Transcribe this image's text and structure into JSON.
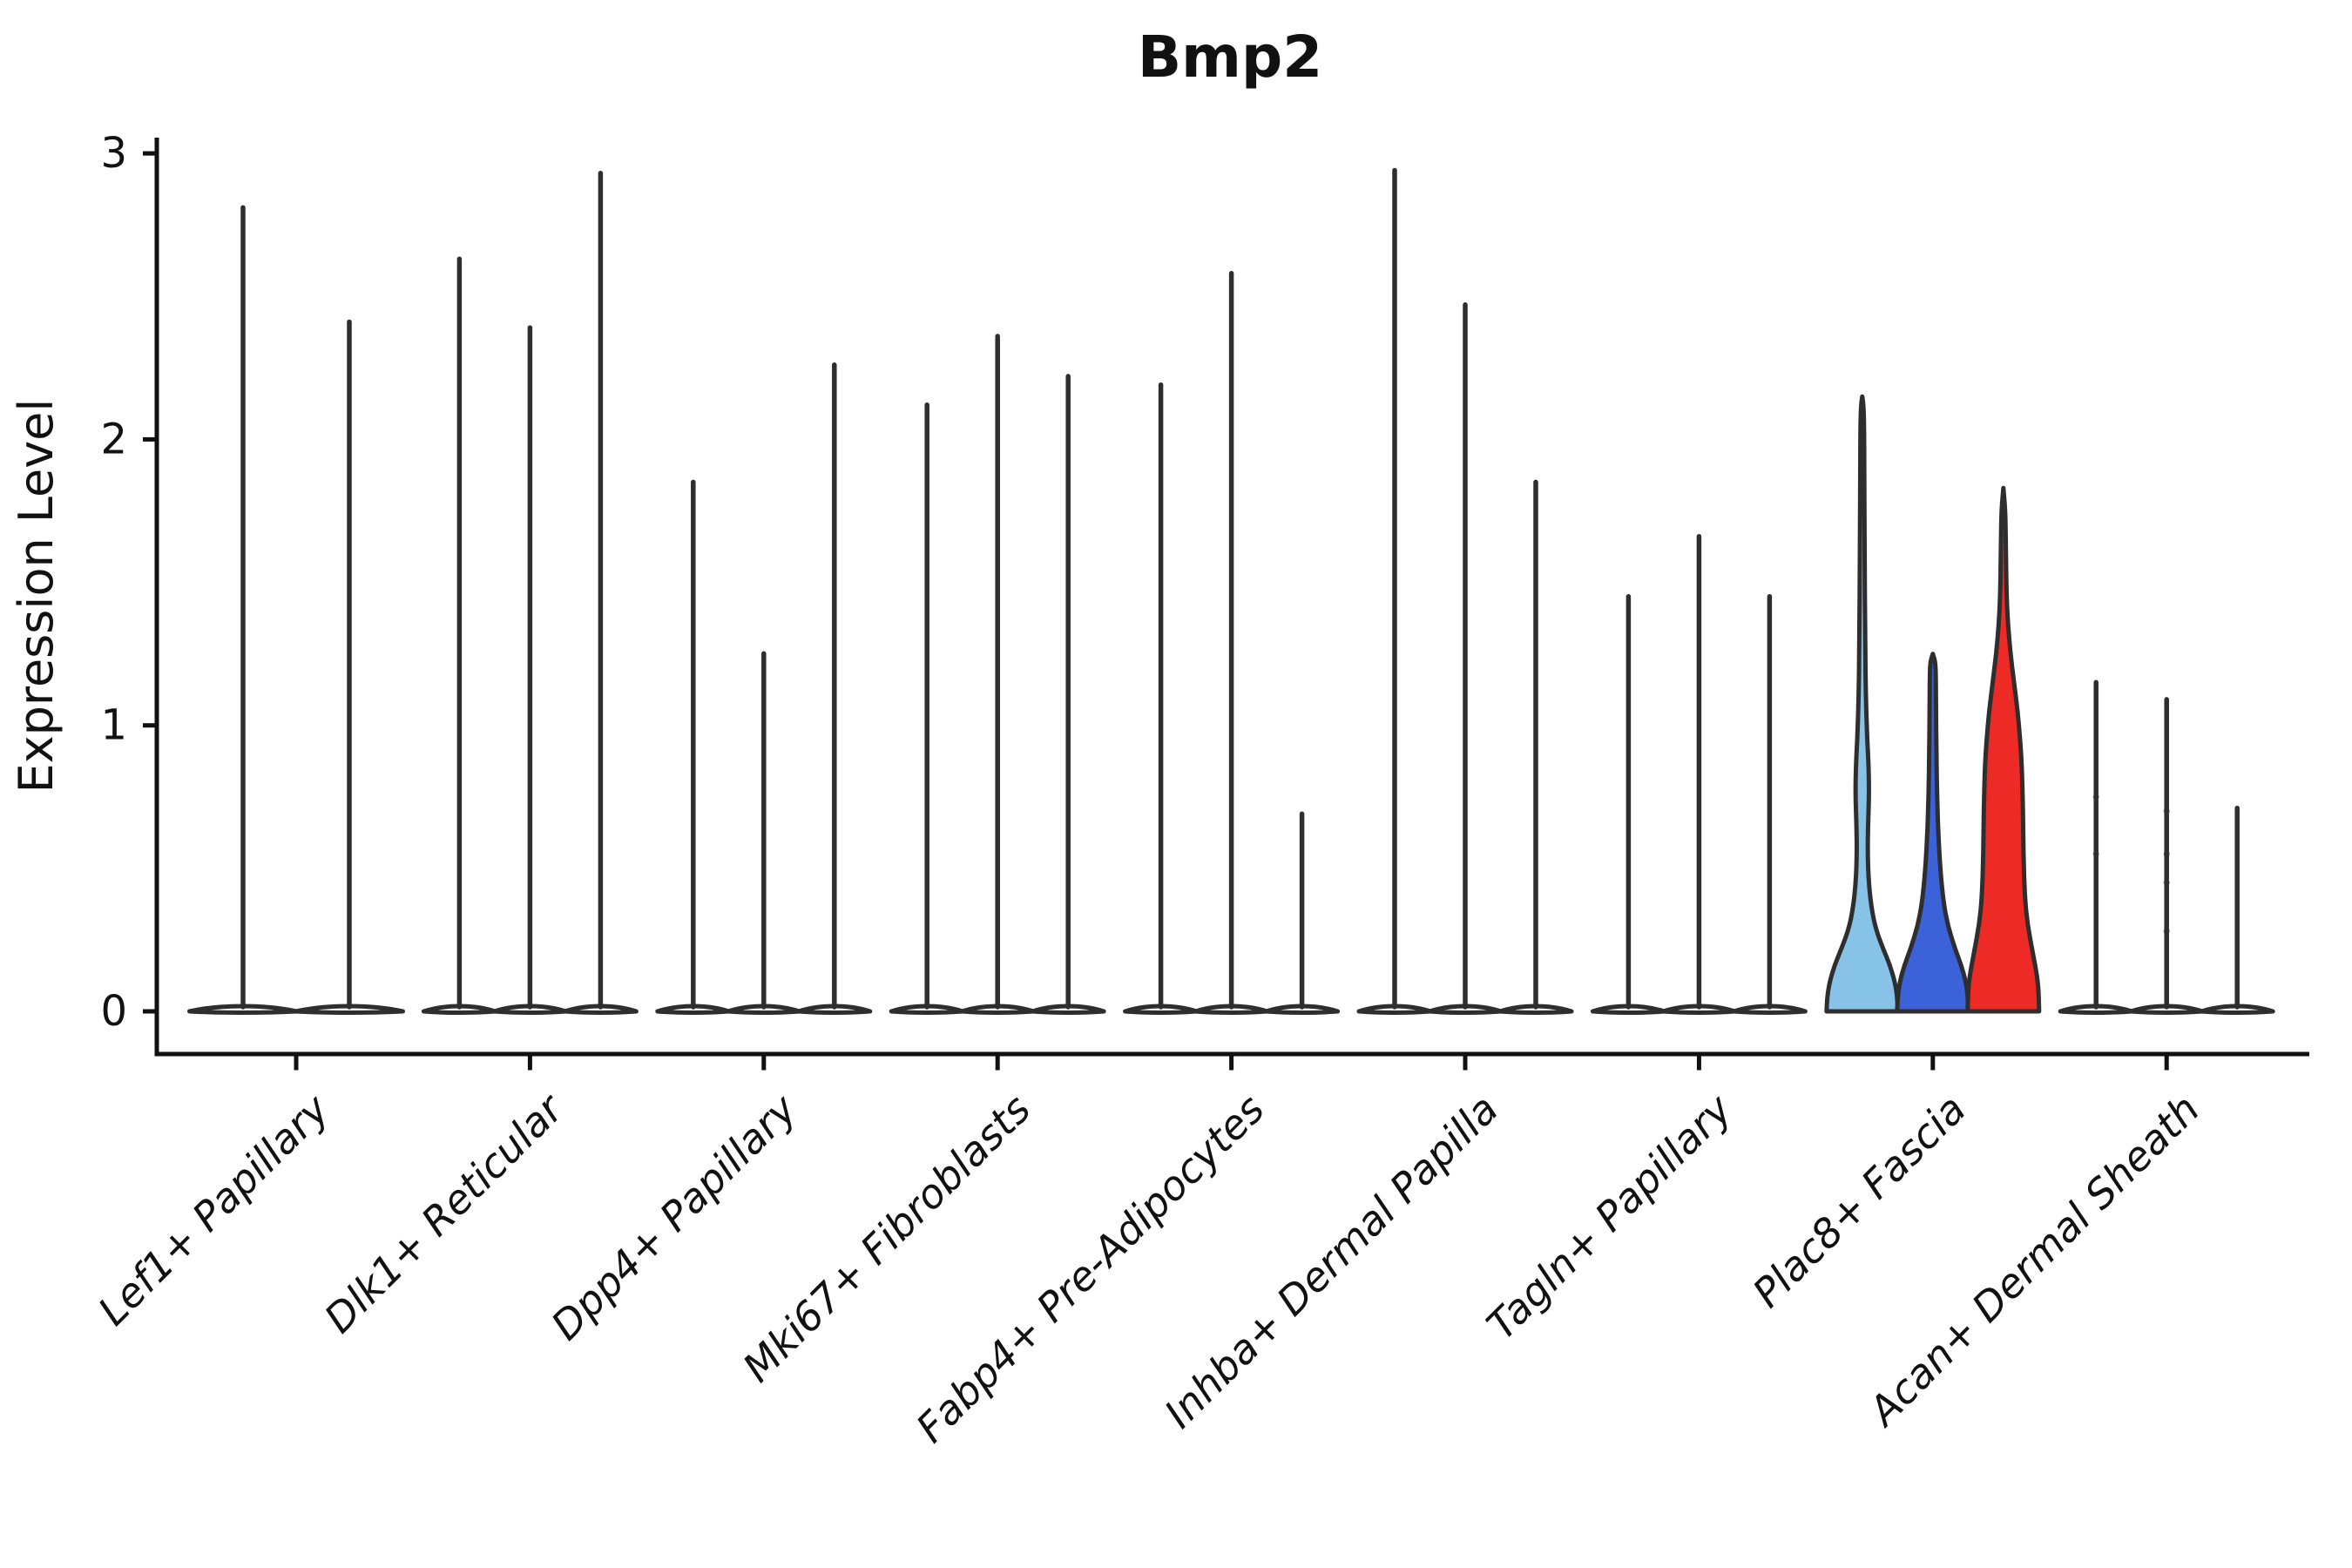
{
  "chart_data": {
    "type": "violin",
    "title": "Bmp2",
    "xlabel": "",
    "ylabel": "Expression Level",
    "yticks": [
      0,
      1,
      2,
      3
    ],
    "ylim": [
      0,
      3
    ],
    "grid": false,
    "legend": "none",
    "categories": [
      "Lef1+ Papillary",
      "Dlk1+ Reticular",
      "Dpp4+ Papillary",
      "Mki67+ Fibroblasts",
      "Fabp4+ Pre-Adipocytes",
      "Inhba+ Dermal Papilla",
      "Tagln+ Papillary",
      "Plac8+ Fascia",
      "Acan+ Dermal Sheath"
    ],
    "groups": [
      {
        "label": "Lef1+ Papillary",
        "violins": [
          {
            "max": 2.82
          },
          {
            "max": 2.42
          }
        ]
      },
      {
        "label": "Dlk1+ Reticular",
        "violins": [
          {
            "max": 2.64
          },
          {
            "max": 2.4
          },
          {
            "max": 2.94
          }
        ]
      },
      {
        "label": "Dpp4+ Papillary",
        "violins": [
          {
            "max": 1.86
          },
          {
            "max": 1.26
          },
          {
            "max": 2.27
          }
        ]
      },
      {
        "label": "Mki67+ Fibroblasts",
        "violins": [
          {
            "max": 2.13
          },
          {
            "max": 2.37
          },
          {
            "max": 2.23
          }
        ]
      },
      {
        "label": "Fabp4+ Pre-Adipocytes",
        "violins": [
          {
            "max": 2.2
          },
          {
            "max": 2.59
          },
          {
            "max": 0.7
          }
        ]
      },
      {
        "label": "Inhba+ Dermal Papilla",
        "violins": [
          {
            "max": 2.95
          },
          {
            "max": 2.48
          },
          {
            "max": 1.86
          }
        ]
      },
      {
        "label": "Tagln+ Papillary",
        "violins": [
          {
            "max": 1.46
          },
          {
            "max": 1.67
          },
          {
            "max": 1.46
          }
        ]
      },
      {
        "label": "Plac8+ Fascia",
        "violins": [
          {
            "max": 2.15,
            "fill": "#87C3E6",
            "profile": [
              [
                0,
                1.0
              ],
              [
                0.05,
                0.98
              ],
              [
                0.1,
                0.92
              ],
              [
                0.16,
                0.78
              ],
              [
                0.22,
                0.58
              ],
              [
                0.28,
                0.4
              ],
              [
                0.35,
                0.27
              ],
              [
                0.45,
                0.18
              ],
              [
                0.55,
                0.15
              ],
              [
                0.65,
                0.16
              ],
              [
                0.75,
                0.19
              ],
              [
                0.85,
                0.18
              ],
              [
                0.95,
                0.14
              ],
              [
                1.1,
                0.1
              ],
              [
                1.3,
                0.08
              ],
              [
                1.6,
                0.065
              ],
              [
                1.9,
                0.055
              ],
              [
                2.05,
                0.05
              ],
              [
                2.12,
                0.035
              ],
              [
                2.15,
                0
              ]
            ]
          },
          {
            "max": 1.25,
            "fill": "#3B62D8",
            "profile": [
              [
                0,
                1.0
              ],
              [
                0.05,
                0.98
              ],
              [
                0.1,
                0.93
              ],
              [
                0.16,
                0.8
              ],
              [
                0.22,
                0.62
              ],
              [
                0.3,
                0.42
              ],
              [
                0.38,
                0.3
              ],
              [
                0.48,
                0.22
              ],
              [
                0.6,
                0.16
              ],
              [
                0.75,
                0.12
              ],
              [
                0.9,
                0.1
              ],
              [
                1.05,
                0.09
              ],
              [
                1.15,
                0.085
              ],
              [
                1.22,
                0.075
              ],
              [
                1.25,
                0
              ]
            ]
          },
          {
            "max": 1.83,
            "fill": "#EE2A26",
            "profile": [
              [
                0,
                1.0
              ],
              [
                0.06,
                0.99
              ],
              [
                0.12,
                0.95
              ],
              [
                0.2,
                0.83
              ],
              [
                0.3,
                0.68
              ],
              [
                0.4,
                0.6
              ],
              [
                0.55,
                0.56
              ],
              [
                0.7,
                0.55
              ],
              [
                0.85,
                0.52
              ],
              [
                0.95,
                0.47
              ],
              [
                1.05,
                0.4
              ],
              [
                1.15,
                0.3
              ],
              [
                1.25,
                0.2
              ],
              [
                1.35,
                0.13
              ],
              [
                1.45,
                0.09
              ],
              [
                1.6,
                0.07
              ],
              [
                1.75,
                0.055
              ],
              [
                1.83,
                0
              ]
            ]
          }
        ]
      },
      {
        "label": "Acan+ Dermal Sheath",
        "violins": [
          {
            "max": 1.16,
            "dots": [
              0.55,
              0.75
            ]
          },
          {
            "max": 1.1,
            "dots": [
              0.28,
              0.45,
              0.55,
              0.7
            ]
          },
          {
            "max": 0.72
          }
        ]
      }
    ],
    "colors": {
      "violin_outline": "#2E2E2E",
      "axis": "#111111",
      "highlight_fills": [
        "#87C3E6",
        "#3B62D8",
        "#EE2A26"
      ]
    }
  }
}
